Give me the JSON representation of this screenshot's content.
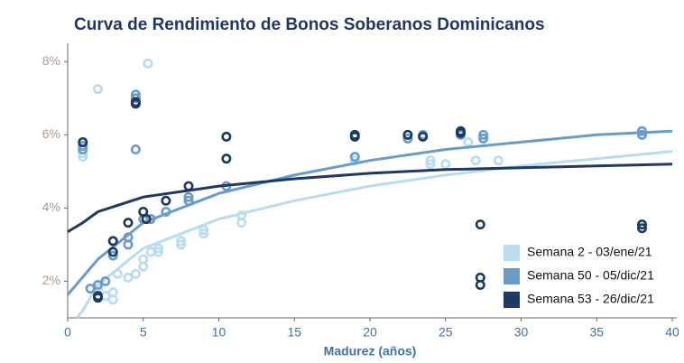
{
  "chart_data": {
    "type": "scatter",
    "title": "Curva de Rendimiento de Bonos Soberanos Dominicanos",
    "x_label": "Madurez (años)",
    "xlim": [
      0,
      40
    ],
    "xticks": [
      0,
      5,
      10,
      15,
      20,
      25,
      30,
      35,
      40
    ],
    "ylim": [
      1,
      8.5
    ],
    "yticks": [
      {
        "value": 2,
        "label": "2%"
      },
      {
        "value": 4,
        "label": "4%"
      },
      {
        "value": 6,
        "label": "6%"
      },
      {
        "value": 8,
        "label": "8%"
      }
    ],
    "grid": false,
    "legend": "lower right",
    "series": [
      {
        "name": "Semana 2 - 03/ene/21",
        "color": "#b9dcf0",
        "x": [
          2,
          5.3,
          1,
          1,
          2,
          2.5,
          3,
          3,
          3.3,
          4,
          4.5,
          5,
          5,
          5.5,
          6,
          6,
          7.5,
          7.5,
          9,
          9,
          11.5,
          11.5,
          19,
          22.5,
          24,
          24,
          25,
          26.5,
          27,
          28.5,
          38
        ],
        "values": [
          7.25,
          7.95,
          5.5,
          5.4,
          1.8,
          1.6,
          1.5,
          1.7,
          2.2,
          2.1,
          2.2,
          2.4,
          2.6,
          2.8,
          2.8,
          2.9,
          3.0,
          3.1,
          3.3,
          3.4,
          3.6,
          3.8,
          5.3,
          5.9,
          5.2,
          5.3,
          5.2,
          5.8,
          5.3,
          5.3,
          6.1
        ],
        "fit": {
          "x": [
            0.6,
            1,
            2,
            5,
            10,
            15,
            20,
            25,
            30,
            35,
            40
          ],
          "values": [
            1.0,
            1.2,
            1.9,
            2.9,
            3.7,
            4.2,
            4.6,
            4.9,
            5.15,
            5.35,
            5.55
          ]
        }
      },
      {
        "name": "Semana 50 - 05/dic/21",
        "color": "#6a9cc8",
        "x": [
          1,
          1,
          1.5,
          2,
          2.5,
          3,
          4,
          4,
          4.5,
          4.5,
          4.5,
          5,
          5.5,
          6.5,
          8,
          8,
          10.5,
          19,
          22.5,
          23.5,
          26,
          27.5,
          27.5,
          38,
          38
        ],
        "values": [
          5.7,
          5.6,
          1.8,
          1.9,
          2.0,
          2.7,
          3.0,
          3.2,
          7.0,
          7.1,
          5.6,
          3.7,
          3.7,
          3.9,
          4.2,
          4.3,
          4.6,
          5.4,
          5.9,
          6.0,
          6.0,
          5.9,
          6.0,
          6.0,
          6.1
        ],
        "fit": {
          "x": [
            0,
            2,
            5,
            10,
            15,
            20,
            25,
            30,
            35,
            40
          ],
          "values": [
            1.63,
            2.6,
            3.6,
            4.4,
            4.9,
            5.3,
            5.6,
            5.8,
            6.0,
            6.1
          ]
        }
      },
      {
        "name": "Semana 53 - 26/dic/21",
        "color": "#1f3864",
        "x": [
          1,
          2,
          2,
          3,
          3,
          4,
          4.5,
          4.5,
          5,
          5.2,
          6.5,
          8,
          10.5,
          10.5,
          19,
          19,
          22.5,
          23.5,
          26,
          26,
          27.3,
          27.3,
          27.3,
          38,
          38
        ],
        "values": [
          5.8,
          1.6,
          1.55,
          2.8,
          3.1,
          3.6,
          6.85,
          6.9,
          3.9,
          3.7,
          4.2,
          4.6,
          5.35,
          5.95,
          5.95,
          6.0,
          6.0,
          5.95,
          6.1,
          6.05,
          3.55,
          2.1,
          1.9,
          3.55,
          3.45
        ],
        "fit": {
          "x": [
            0,
            1,
            2,
            5,
            10,
            15,
            20,
            25,
            30,
            35,
            40
          ],
          "values": [
            3.35,
            3.6,
            3.9,
            4.3,
            4.6,
            4.8,
            4.95,
            5.05,
            5.1,
            5.15,
            5.2
          ]
        }
      }
    ]
  }
}
